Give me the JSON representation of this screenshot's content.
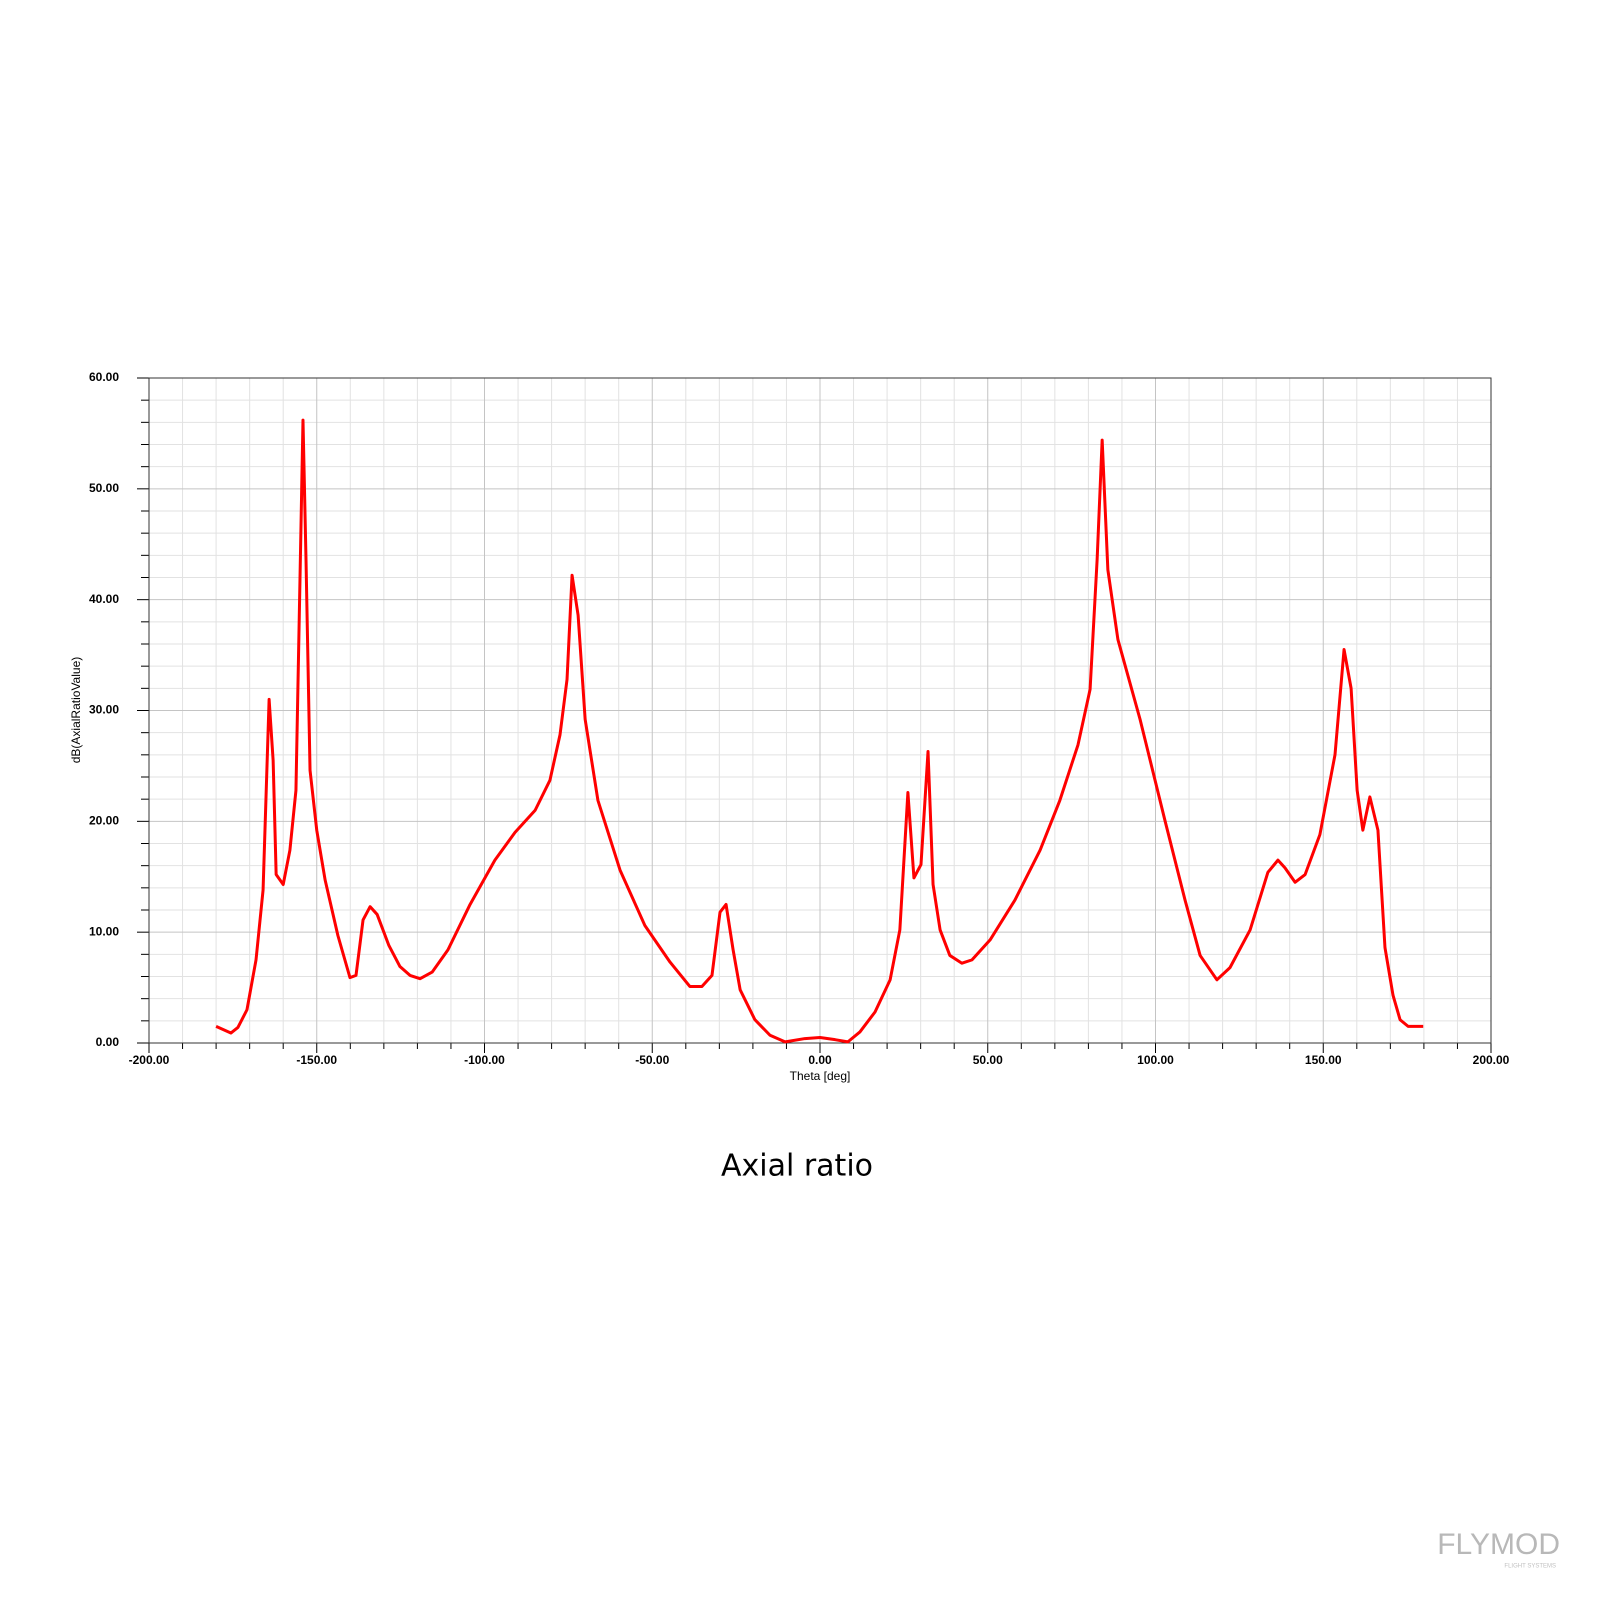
{
  "chart_data": {
    "type": "line",
    "caption": "Axial ratio",
    "xlabel": "Theta [deg]",
    "ylabel": "dB(AxialRatioValue)",
    "watermark": "FLYMOD",
    "watermark_sub": "FLIGHT SYSTEMS",
    "color": "#ff0000",
    "grid": true,
    "xlim": [
      -200,
      200
    ],
    "ylim": [
      0,
      60
    ],
    "xticks": [
      {
        "value": -200,
        "label": "-200.00"
      },
      {
        "value": -150,
        "label": "-150.00"
      },
      {
        "value": -100,
        "label": "-100.00"
      },
      {
        "value": -50,
        "label": "-50.00"
      },
      {
        "value": 0,
        "label": "0.00"
      },
      {
        "value": 50,
        "label": "50.00"
      },
      {
        "value": 100,
        "label": "100.00"
      },
      {
        "value": 150,
        "label": "150.00"
      },
      {
        "value": 200,
        "label": "200.00"
      }
    ],
    "yticks": [
      {
        "value": 0,
        "label": "0.00"
      },
      {
        "value": 10,
        "label": "10.00"
      },
      {
        "value": 20,
        "label": "20.00"
      },
      {
        "value": 30,
        "label": "30.00"
      },
      {
        "value": 40,
        "label": "40.00"
      },
      {
        "value": 50,
        "label": "50.00"
      },
      {
        "value": 60,
        "label": "60.00"
      }
    ],
    "x_minor_ticks": [
      -190,
      -180,
      -170,
      -160,
      -140,
      -130,
      -120,
      -110,
      -90,
      -80,
      -70,
      -60,
      -40,
      -30,
      -20,
      -10,
      10,
      20,
      30,
      40,
      60,
      70,
      80,
      90,
      110,
      120,
      130,
      140,
      160,
      170,
      180,
      190
    ],
    "y_minor_ticks": [
      2,
      4,
      6,
      8,
      12,
      14,
      16,
      18,
      22,
      24,
      26,
      28,
      32,
      34,
      36,
      38,
      42,
      44,
      46,
      48,
      52,
      54,
      56,
      58
    ],
    "x": [
      -180,
      -175.6,
      -173.5,
      -170.8,
      -168.1,
      -166,
      -164.2,
      -163,
      -162.1,
      -160,
      -158,
      -156.2,
      -155,
      -154.1,
      -153.2,
      -152,
      -150,
      -147.5,
      -143.7,
      -140.1,
      -138.3,
      -136.2,
      -134.1,
      -132,
      -128.5,
      -125.2,
      -122.2,
      -119.2,
      -115.6,
      -110.9,
      -104.3,
      -96.9,
      -90.9,
      -84.9,
      -80.5,
      -77.5,
      -75.4,
      -73.9,
      -72.1,
      -70,
      -66.2,
      -59.6,
      -52.2,
      -44.7,
      -38.8,
      -35.2,
      -32.2,
      -29.8,
      -28,
      -25.9,
      -23.8,
      -19.4,
      -14.9,
      -10.4,
      -4.5,
      0,
      4.5,
      8.3,
      11.9,
      16.4,
      20.9,
      23.8,
      26.2,
      28,
      30.1,
      32.2,
      33.7,
      35.8,
      38.7,
      42.3,
      45.3,
      50.7,
      58.1,
      65.6,
      71.5,
      76.9,
      80.5,
      82.6,
      84.1,
      85.8,
      88.8,
      95.4,
      102.8,
      108.8,
      113.3,
      118.3,
      122.2,
      128.2,
      133.5,
      136.5,
      138.6,
      141.6,
      144.6,
      149,
      153.5,
      156.2,
      158.3,
      160.1,
      161.8,
      163.9,
      166.3,
      168.4,
      170.8,
      172.9,
      175.3,
      179.8
    ],
    "values": [
      1.5,
      0.9,
      1.4,
      3,
      7.5,
      13.8,
      31,
      25.5,
      15.2,
      14.3,
      17.4,
      22.8,
      41.8,
      56.2,
      43.6,
      24.6,
      19.2,
      14.7,
      9.7,
      5.9,
      6.1,
      11.1,
      12.3,
      11.6,
      8.8,
      6.9,
      6.1,
      5.8,
      6.4,
      8.4,
      12.5,
      16.5,
      19,
      21,
      23.7,
      27.8,
      32.8,
      42.2,
      38.6,
      29.2,
      21.9,
      15.6,
      10.6,
      7.3,
      5.1,
      5.1,
      6.1,
      11.8,
      12.5,
      8.4,
      4.8,
      2.1,
      0.7,
      0.1,
      0.4,
      0.5,
      0.3,
      0.1,
      1,
      2.8,
      5.7,
      10.2,
      22.6,
      14.9,
      16.1,
      26.3,
      14.3,
      10.2,
      7.9,
      7.2,
      7.5,
      9.3,
      12.9,
      17.4,
      21.9,
      26.9,
      31.9,
      43.6,
      54.4,
      42.7,
      36.4,
      29.2,
      20.1,
      12.9,
      7.9,
      5.7,
      6.8,
      10.2,
      15.4,
      16.5,
      15.8,
      14.5,
      15.2,
      18.8,
      26,
      35.5,
      32,
      22.8,
      19.2,
      22.2,
      19.2,
      8.6,
      4.3,
      2.1,
      1.5,
      1.5
    ]
  }
}
